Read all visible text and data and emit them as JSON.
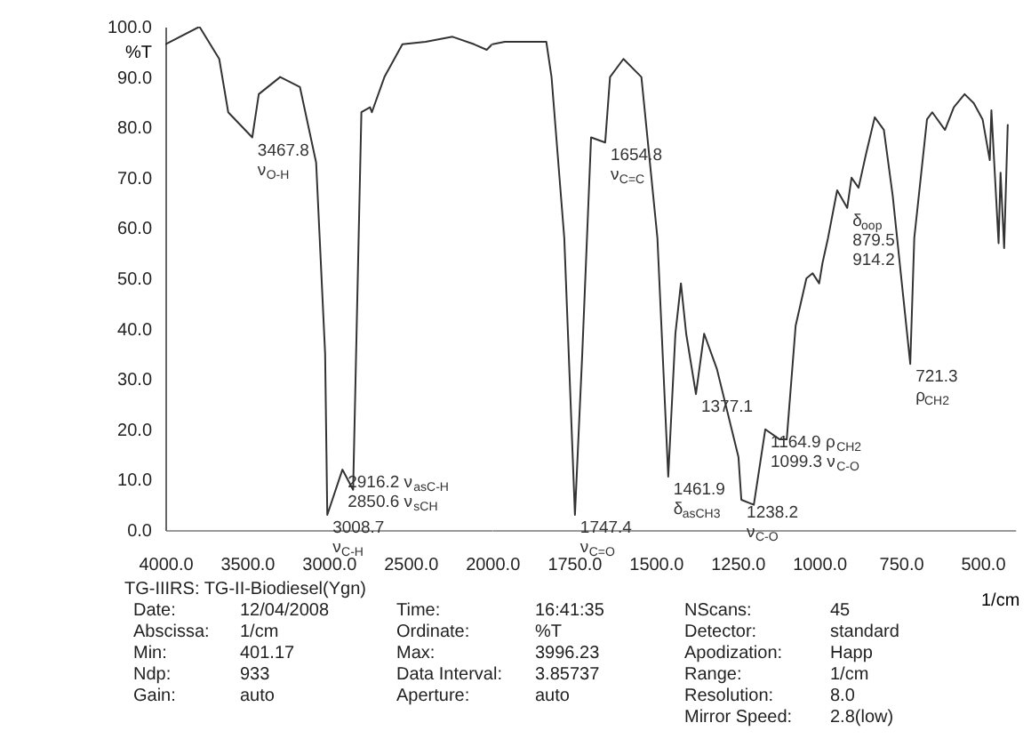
{
  "chart_data": [
    {
      "type": "line",
      "ylabel": "%T",
      "series": [
        {
          "color": "#333333",
          "x": [
            4000,
            3791,
            3670,
            3615,
            3467.8,
            3428,
            3297,
            3176,
            3077,
            3022,
            3008.7,
            2916.2,
            2850.6,
            2800,
            2747,
            2736,
            2659,
            2549,
            2407,
            2242,
            2110,
            2033,
            2000
          ],
          "values": [
            96.5,
            100,
            93.6,
            83,
            78,
            86.6,
            90,
            88,
            73,
            35,
            3,
            12,
            8,
            83,
            84,
            83,
            90,
            96.5,
            97,
            98,
            96.5,
            95.4,
            96.5
          ]
        }
      ],
      "xlim": [
        4000,
        2000
      ],
      "xticks": [
        {
          "value": 4000,
          "label": "4000.0"
        },
        {
          "value": 3500,
          "label": "3500.0"
        },
        {
          "value": 3000,
          "label": "3000.0"
        },
        {
          "value": 2500,
          "label": "2500.0"
        },
        {
          "value": 2000,
          "label": "2000.0"
        }
      ],
      "ylim": [
        0,
        100
      ],
      "yticks": [
        {
          "value": 0,
          "label": "0.0"
        },
        {
          "value": 10,
          "label": "10.0"
        },
        {
          "value": 20,
          "label": "20.0"
        },
        {
          "value": 30,
          "label": "30.0"
        },
        {
          "value": 40,
          "label": "40.0"
        },
        {
          "value": 50,
          "label": "50.0"
        },
        {
          "value": 60,
          "label": "60.0"
        },
        {
          "value": 70,
          "label": "70.0"
        },
        {
          "value": 80,
          "label": "80.0"
        },
        {
          "value": 90,
          "label": "90.0"
        },
        {
          "value": 100,
          "label": "100.0"
        }
      ],
      "grid": false,
      "annotations": [
        {
          "text": "3467.8\nν$_{O-H}$",
          "x": 3467.8,
          "y": 78
        },
        {
          "text": "3008.7\nν$_{C-H}$",
          "x": 3008.7,
          "y": 3
        },
        {
          "text": "2916.2 ν$_{asC-H}$\n2850.6 ν$_{sCH}$",
          "x": 2916.2,
          "y": 12
        },
        "TG-IIIRS: TG-II-Biodiesel(Ygn)",
        "Date: 12/04/2008",
        "Time: 16:41:35",
        "NScans: 45",
        "Abscissa: 1/cm",
        "Ordinate: %T",
        "Detector: standard",
        "Min: 401.17",
        "Max: 3996.23",
        "Apodization: Happ",
        "Ndp: 933",
        "Data Interval: 3.85737",
        "Range: 1/cm",
        "Gain: auto",
        "Aperture: auto",
        "Resolution: 8.0",
        "Mirror Speed: 2.8(low)"
      ]
    },
    {
      "type": "line",
      "xlabel": "1/cm",
      "series": [
        {
          "color": "#333333",
          "x": [
            2000,
            1962,
            1890,
            1835,
            1819,
            1780,
            1747.4,
            1725,
            1698,
            1654.8,
            1640,
            1599,
            1544,
            1495,
            1461.9,
            1440,
            1423,
            1407,
            1377.1,
            1352,
            1313,
            1247,
            1238.2,
            1200,
            1164.9,
            1121,
            1099.3,
            1072,
            1039,
            1020,
            1000,
            990,
            973,
            945,
            914.2,
            901,
            879.5,
            857,
            830,
            802,
            775,
            721.3,
            709,
            670,
            654,
            615,
            588,
            555,
            527,
            500,
            478,
            473,
            451,
            445,
            434,
            423
          ],
          "values": [
            96.5,
            97,
            97,
            97,
            90,
            58,
            3,
            35,
            78,
            77,
            90,
            93.6,
            90,
            58,
            10.6,
            39,
            49,
            39,
            27,
            39,
            32,
            14.5,
            6,
            5,
            20,
            18,
            18,
            40.6,
            50,
            51,
            49,
            53,
            58,
            67.5,
            64,
            70,
            68,
            74.6,
            82,
            79.5,
            66.4,
            33,
            58,
            81.6,
            83,
            79.5,
            84,
            86.6,
            84.8,
            81.6,
            73.5,
            83.4,
            57,
            71,
            56,
            80.5
          ]
        }
      ],
      "xlim": [
        2000,
        400
      ],
      "xticks": [
        {
          "value": 1750,
          "label": "1750.0"
        },
        {
          "value": 1500,
          "label": "1500.0"
        },
        {
          "value": 1250,
          "label": "1250.0"
        },
        {
          "value": 1000,
          "label": "1000.0"
        },
        {
          "value": 750,
          "label": "750.0"
        },
        {
          "value": 500,
          "label": "500.0"
        }
      ],
      "ylim": [
        0,
        100
      ],
      "tick_labels": "x",
      "grid": false,
      "annotations": [
        {
          "text": "1747.4\nν$_{C=O}$",
          "x": 1747.4,
          "y": 3
        },
        {
          "text": "1654.8\nν$_{C=C}$",
          "x": 1654.8,
          "y": 77
        },
        {
          "text": "1461.9\nδ$_{asCH3}$",
          "x": 1461.9,
          "y": 10.6
        },
        {
          "text": "1377.1",
          "x": 1377.1,
          "y": 27
        },
        {
          "text": "1238.2\nν$_{C-O}$",
          "x": 1238.2,
          "y": 6
        },
        {
          "text": "1164.9 ρ$_{CH2}$\n1099.3 ν$_{C-O}$",
          "x": 1164.9,
          "y": 20
        },
        {
          "text": "δ$_{oop}$\n879.5\n914.2",
          "x": 914.2,
          "y": 64
        },
        {
          "text": "721.3\nρ$_{CH2}$",
          "x": 721.3,
          "y": 33
        }
      ]
    }
  ]
}
